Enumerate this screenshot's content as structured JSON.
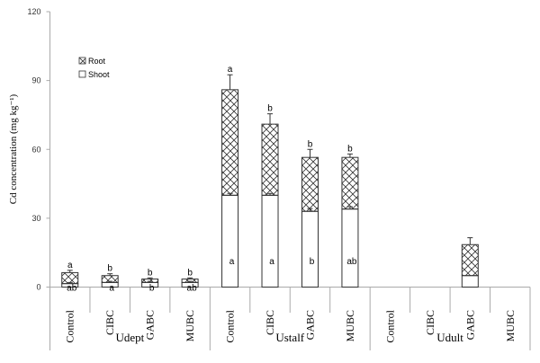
{
  "chart_data": {
    "type": "bar",
    "stacked": true,
    "ylabel": "Cd  concentration (mg kg⁻¹)",
    "ylim": [
      0,
      120
    ],
    "yticks": [
      0,
      30,
      60,
      90,
      120
    ],
    "groups": [
      {
        "label": "Udept",
        "categories": [
          "Control",
          "CIBC",
          "GABC",
          "MUBC"
        ]
      },
      {
        "label": "Ustalf",
        "categories": [
          "Control",
          "CIBC",
          "GABC",
          "MUBC"
        ]
      },
      {
        "label": "Udult",
        "categories": [
          "Control",
          "CIBC",
          "GABC",
          "MUBC"
        ]
      }
    ],
    "series": [
      {
        "name": "Shoot",
        "pattern": "white",
        "values": [
          1.5,
          2,
          2,
          2,
          40,
          40,
          33,
          34,
          0,
          0,
          5,
          0
        ],
        "errors": [
          0.5,
          0.5,
          0.5,
          0.5,
          0.8,
          0.8,
          1.2,
          1.0,
          0,
          0,
          0,
          0
        ],
        "letters": [
          "ab",
          "a",
          "b",
          "ab",
          "a",
          "a",
          "b",
          "ab",
          "",
          "",
          "",
          ""
        ]
      },
      {
        "name": "Root",
        "pattern": "crosshatch",
        "values": [
          4.8,
          3,
          1.5,
          1.5,
          46,
          31,
          23.5,
          22.5,
          0,
          0,
          13.5,
          0
        ],
        "errors": [
          1.0,
          0.8,
          0.5,
          0.5,
          6.5,
          4.5,
          3.5,
          1.5,
          0,
          0,
          3,
          0
        ],
        "letters": [
          "a",
          "b",
          "b",
          "b",
          "a",
          "b",
          "b",
          "b",
          "",
          "",
          "",
          ""
        ]
      }
    ],
    "legend": {
      "placement": "top-left",
      "entries": [
        "Root",
        "Shoot"
      ]
    },
    "grid": false
  }
}
